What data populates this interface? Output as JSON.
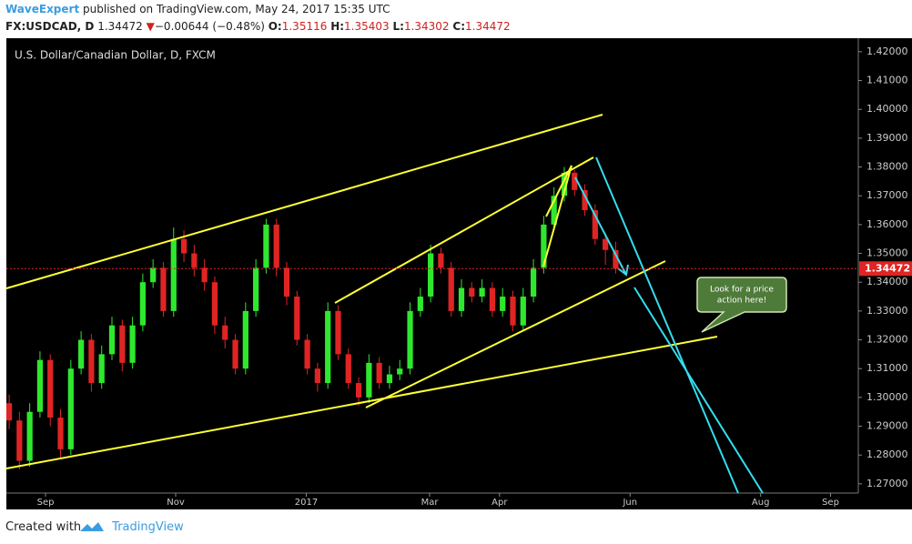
{
  "header": {
    "author": "WaveExpert",
    "published": "published on TradingView.com, May 24, 2017 15:35 UTC",
    "symbol": "FX:USDCAD, D",
    "change": "−0.00644 (−0.48%)",
    "open_label": "O:",
    "open": 1.35116,
    "high_label": "H:",
    "high": 1.35403,
    "low_label": "L:",
    "low": 1.34302,
    "close_label": "C:",
    "close": 1.34472
  },
  "annotation": [
    "Look for a price",
    "action here!"
  ],
  "footer": {
    "created": "Created with",
    "brand": "TradingView"
  },
  "chart_data": {
    "type": "candlestick",
    "title": "U.S. Dollar/Canadian Dollar, D, FXCM",
    "up_color": "#2ee82e",
    "down_color": "#e02424",
    "last_price": 1.34472,
    "xlim": [
      -0.27,
      82.6
    ],
    "ylim": [
      1.2668,
      1.4247
    ],
    "xticks": [
      {
        "value": 3.54,
        "label": "Sep"
      },
      {
        "value": 16.2,
        "label": "Nov"
      },
      {
        "value": 28.9,
        "label": "2017"
      },
      {
        "value": 40.9,
        "label": "Mar"
      },
      {
        "value": 47.7,
        "label": "Apr"
      },
      {
        "value": 60.4,
        "label": "Jun"
      },
      {
        "value": 73.1,
        "label": "Aug"
      },
      {
        "value": 79.9,
        "label": "Sep"
      }
    ],
    "yticks": [
      {
        "value": 1.27,
        "label": "1.27000"
      },
      {
        "value": 1.28,
        "label": "1.28000"
      },
      {
        "value": 1.29,
        "label": "1.29000"
      },
      {
        "value": 1.3,
        "label": "1.30000"
      },
      {
        "value": 1.31,
        "label": "1.31000"
      },
      {
        "value": 1.32,
        "label": "1.32000"
      },
      {
        "value": 1.33,
        "label": "1.33000"
      },
      {
        "value": 1.34,
        "label": "1.34000"
      },
      {
        "value": 1.35,
        "label": "1.35000"
      },
      {
        "value": 1.36,
        "label": "1.36000"
      },
      {
        "value": 1.37,
        "label": "1.37000"
      },
      {
        "value": 1.38,
        "label": "1.38000"
      },
      {
        "value": 1.39,
        "label": "1.39000"
      },
      {
        "value": 1.4,
        "label": "1.40000"
      },
      {
        "value": 1.41,
        "label": "1.41000"
      },
      {
        "value": 1.42,
        "label": "1.42000"
      }
    ],
    "open": [
      1.298,
      1.292,
      1.278,
      1.295,
      1.313,
      1.293,
      1.282,
      1.31,
      1.32,
      1.305,
      1.315,
      1.325,
      1.312,
      1.325,
      1.34,
      1.345,
      1.33,
      1.355,
      1.35,
      1.345,
      1.34,
      1.325,
      1.32,
      1.31,
      1.33,
      1.345,
      1.36,
      1.345,
      1.335,
      1.32,
      1.31,
      1.305,
      1.33,
      1.315,
      1.305,
      1.3,
      1.312,
      1.305,
      1.308,
      1.31,
      1.33,
      1.335,
      1.35,
      1.345,
      1.33,
      1.338,
      1.335,
      1.338,
      1.33,
      1.335,
      1.325,
      1.335,
      1.345,
      1.36,
      1.37,
      1.378,
      1.372,
      1.365,
      1.355,
      1.35116
    ],
    "high": [
      1.301,
      1.295,
      1.298,
      1.316,
      1.315,
      1.296,
      1.313,
      1.323,
      1.322,
      1.318,
      1.328,
      1.327,
      1.328,
      1.343,
      1.348,
      1.347,
      1.359,
      1.358,
      1.353,
      1.348,
      1.342,
      1.328,
      1.322,
      1.333,
      1.348,
      1.362,
      1.362,
      1.347,
      1.337,
      1.322,
      1.312,
      1.333,
      1.332,
      1.317,
      1.307,
      1.315,
      1.314,
      1.311,
      1.313,
      1.333,
      1.338,
      1.353,
      1.352,
      1.347,
      1.341,
      1.34,
      1.341,
      1.34,
      1.338,
      1.337,
      1.338,
      1.348,
      1.363,
      1.373,
      1.38,
      1.379,
      1.374,
      1.367,
      1.357,
      1.35403
    ],
    "low": [
      1.289,
      1.275,
      1.276,
      1.293,
      1.29,
      1.279,
      1.28,
      1.308,
      1.302,
      1.303,
      1.313,
      1.309,
      1.31,
      1.323,
      1.338,
      1.328,
      1.328,
      1.347,
      1.342,
      1.337,
      1.322,
      1.317,
      1.308,
      1.308,
      1.328,
      1.343,
      1.342,
      1.332,
      1.318,
      1.308,
      1.302,
      1.303,
      1.313,
      1.303,
      1.297,
      1.298,
      1.303,
      1.303,
      1.306,
      1.308,
      1.328,
      1.333,
      1.343,
      1.328,
      1.328,
      1.333,
      1.333,
      1.328,
      1.328,
      1.323,
      1.323,
      1.333,
      1.343,
      1.358,
      1.368,
      1.37,
      1.363,
      1.353,
      1.346,
      1.34302
    ],
    "close": [
      1.292,
      1.278,
      1.295,
      1.313,
      1.293,
      1.282,
      1.31,
      1.32,
      1.305,
      1.315,
      1.325,
      1.312,
      1.325,
      1.34,
      1.345,
      1.33,
      1.355,
      1.35,
      1.345,
      1.34,
      1.325,
      1.32,
      1.31,
      1.33,
      1.345,
      1.36,
      1.345,
      1.335,
      1.32,
      1.31,
      1.305,
      1.33,
      1.315,
      1.305,
      1.3,
      1.312,
      1.305,
      1.308,
      1.31,
      1.33,
      1.335,
      1.35,
      1.345,
      1.33,
      1.338,
      1.335,
      1.338,
      1.33,
      1.335,
      1.325,
      1.335,
      1.345,
      1.36,
      1.37,
      1.378,
      1.372,
      1.365,
      1.355,
      1.3512,
      1.34472
    ]
  }
}
